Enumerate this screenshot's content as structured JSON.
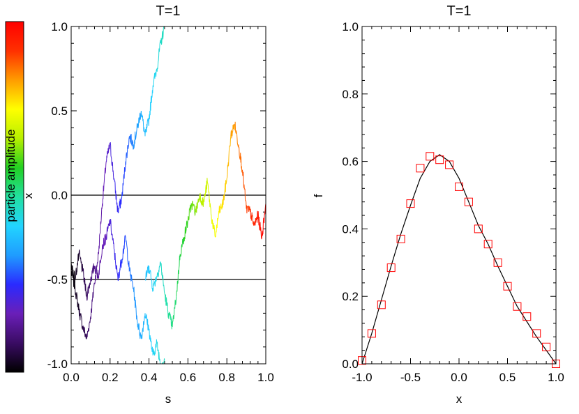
{
  "colorbar": {
    "label": "particle amplitude",
    "stops": [
      "#000000",
      "#3a0c64",
      "#6a1fb8",
      "#2a2aff",
      "#1f9cff",
      "#22d4ff",
      "#22e0a0",
      "#22d022",
      "#b8f000",
      "#ffff00",
      "#ff9c00",
      "#ff3000",
      "#ff0000"
    ]
  },
  "chart_data": [
    {
      "type": "line",
      "title": "T=1",
      "xlabel": "s",
      "ylabel": "x",
      "xlim": [
        0.0,
        1.0
      ],
      "ylim": [
        -1.0,
        1.0
      ],
      "xticks": [
        0.0,
        0.2,
        0.4,
        0.6,
        0.8,
        1.0
      ],
      "xtick_labels": [
        "0.0",
        "0.2",
        "0.4",
        "0.6",
        "0.8",
        "1.0"
      ],
      "yticks": [
        -1.0,
        -0.5,
        0.0,
        0.5,
        1.0
      ],
      "ytick_labels": [
        "-1.0",
        "-0.5",
        "0.0",
        "0.5",
        "1.0"
      ],
      "hlines": [
        0.0,
        -0.5
      ],
      "color_by": "s",
      "series": [
        {
          "x": [
            0.0,
            0.02,
            0.04,
            0.06,
            0.08,
            0.1,
            0.12,
            0.14,
            0.16,
            0.18,
            0.2,
            0.22,
            0.24,
            0.26,
            0.28,
            0.3,
            0.32,
            0.34,
            0.36,
            0.38,
            0.4,
            0.42,
            0.44,
            0.46,
            0.48
          ],
          "y": [
            -0.45,
            -0.55,
            -0.68,
            -0.78,
            -0.85,
            -0.72,
            -0.52,
            -0.35,
            -0.05,
            0.2,
            0.3,
            0.1,
            -0.1,
            -0.02,
            0.2,
            0.35,
            0.3,
            0.4,
            0.5,
            0.35,
            0.45,
            0.65,
            0.75,
            0.9,
            1.0
          ]
        },
        {
          "x": [
            0.0,
            0.02,
            0.04,
            0.06,
            0.08,
            0.1,
            0.12,
            0.14,
            0.16,
            0.18,
            0.2,
            0.22,
            0.24,
            0.26,
            0.28,
            0.3,
            0.32,
            0.34,
            0.36,
            0.38,
            0.4,
            0.42,
            0.44,
            0.46,
            0.48
          ],
          "y": [
            -0.4,
            -0.5,
            -0.35,
            -0.45,
            -0.6,
            -0.5,
            -0.42,
            -0.48,
            -0.3,
            -0.25,
            -0.15,
            -0.32,
            -0.5,
            -0.38,
            -0.25,
            -0.45,
            -0.55,
            -0.75,
            -0.85,
            -0.7,
            -0.8,
            -0.95,
            -0.88,
            -1.0,
            -0.98
          ]
        },
        {
          "x": [
            0.38,
            0.4,
            0.42,
            0.44,
            0.46,
            0.48,
            0.5,
            0.52,
            0.54,
            0.56,
            0.58,
            0.6,
            0.62,
            0.64,
            0.66,
            0.68,
            0.7,
            0.72,
            0.74,
            0.76,
            0.78,
            0.8,
            0.82,
            0.84,
            0.86,
            0.88,
            0.9,
            0.92,
            0.94,
            0.96,
            0.98,
            1.0
          ],
          "y": [
            -0.5,
            -0.42,
            -0.55,
            -0.48,
            -0.4,
            -0.58,
            -0.7,
            -0.78,
            -0.6,
            -0.35,
            -0.25,
            -0.15,
            -0.05,
            -0.1,
            0.0,
            -0.05,
            0.08,
            -0.12,
            -0.25,
            -0.1,
            -0.05,
            0.1,
            0.35,
            0.42,
            0.3,
            0.15,
            -0.08,
            -0.1,
            -0.18,
            -0.12,
            -0.25,
            -0.05
          ]
        }
      ]
    },
    {
      "type": "line",
      "title": "T=1",
      "xlabel": "x",
      "ylabel": "f",
      "xlim": [
        -1.0,
        1.0
      ],
      "ylim": [
        0.0,
        1.0
      ],
      "xticks": [
        -1.0,
        -0.5,
        0.0,
        0.5,
        1.0
      ],
      "xtick_labels": [
        "-1.0",
        "-0.5",
        "0.0",
        "0.5",
        "1.0"
      ],
      "yticks": [
        0.0,
        0.2,
        0.4,
        0.6,
        0.8,
        1.0
      ],
      "ytick_labels": [
        "0.0",
        "0.2",
        "0.4",
        "0.6",
        "0.8",
        "1.0"
      ],
      "curve": {
        "x": [
          -1.0,
          -0.9,
          -0.8,
          -0.7,
          -0.6,
          -0.5,
          -0.4,
          -0.3,
          -0.2,
          -0.1,
          0.0,
          0.1,
          0.2,
          0.3,
          0.4,
          0.5,
          0.6,
          0.7,
          0.8,
          0.9,
          1.0
        ],
        "y": [
          0.0,
          0.09,
          0.19,
          0.29,
          0.385,
          0.47,
          0.55,
          0.6,
          0.62,
          0.6,
          0.55,
          0.48,
          0.41,
          0.355,
          0.29,
          0.23,
          0.17,
          0.125,
          0.08,
          0.04,
          0.0
        ],
        "color": "#000000"
      },
      "markers": {
        "shape": "square",
        "color": "#ff0000",
        "x": [
          -1.0,
          -0.9,
          -0.8,
          -0.7,
          -0.6,
          -0.5,
          -0.4,
          -0.3,
          -0.2,
          -0.1,
          0.0,
          0.1,
          0.2,
          0.3,
          0.4,
          0.5,
          0.6,
          0.7,
          0.8,
          0.9,
          1.0
        ],
        "y": [
          0.01,
          0.09,
          0.175,
          0.285,
          0.37,
          0.475,
          0.58,
          0.615,
          0.605,
          0.59,
          0.525,
          0.48,
          0.4,
          0.355,
          0.3,
          0.23,
          0.17,
          0.14,
          0.09,
          0.05,
          0.0
        ]
      }
    }
  ]
}
